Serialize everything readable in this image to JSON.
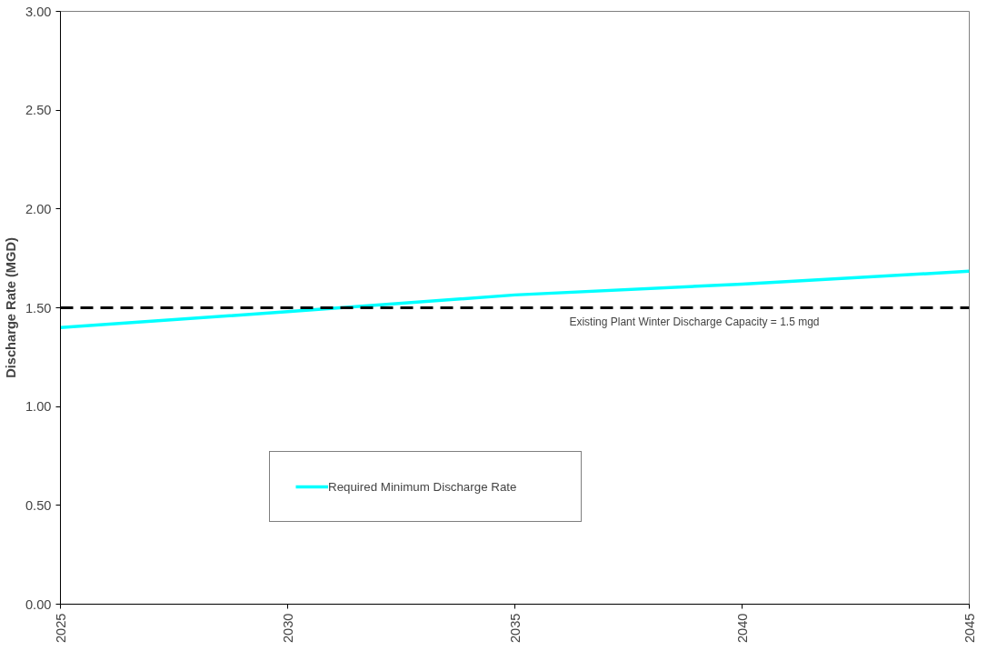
{
  "chart_data": {
    "type": "line",
    "ylabel": "Discharge Rate (MGD)",
    "x": [
      2025,
      2030,
      2035,
      2040,
      2045
    ],
    "series": [
      {
        "name": "Required Minimum Discharge Rate",
        "color": "#00ffff",
        "values": [
          1.4,
          1.48,
          1.565,
          1.62,
          1.685
        ]
      }
    ],
    "xlim": [
      2025,
      2045
    ],
    "xticks": [
      2025,
      2030,
      2035,
      2040,
      2045
    ],
    "ylim": [
      0,
      3
    ],
    "yticks": [
      {
        "value": 0,
        "label": "0.00"
      },
      {
        "value": 0.5,
        "label": "0.50"
      },
      {
        "value": 1,
        "label": "1.00"
      },
      {
        "value": 1.5,
        "label": "1.50"
      },
      {
        "value": 2,
        "label": "2.00"
      },
      {
        "value": 2.5,
        "label": "2.50"
      },
      {
        "value": 3,
        "label": "3.00"
      }
    ],
    "ref_lines": [
      {
        "axis": "y",
        "value": 1.5,
        "label": "Existing Plant Winter Discharge Capacity = 1.5 mgd",
        "color": "#000000",
        "line_style": "dashed"
      }
    ],
    "grid": false,
    "legend": "bottom",
    "marker": "none",
    "line_style": "solid"
  }
}
